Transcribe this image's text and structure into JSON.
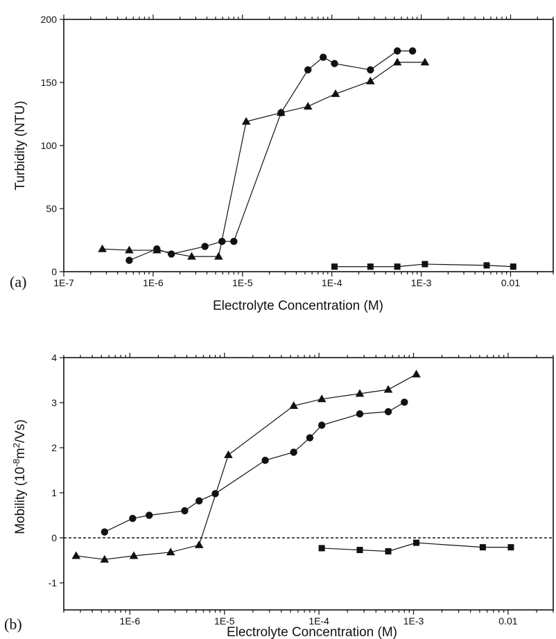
{
  "chart_data": [
    {
      "type": "line",
      "panel_label": "(a)",
      "xlabel": "Electrolyte Concentration (M)",
      "ylabel": "Turbidity (NTU)",
      "x_scale": "log",
      "xlim": [
        1e-07,
        0.03
      ],
      "ylim": [
        0,
        200
      ],
      "x_ticks": [
        1e-07,
        1e-06,
        1e-05,
        0.0001,
        0.001,
        0.01
      ],
      "x_tick_labels": [
        "1E-7",
        "1E-6",
        "1E-5",
        "1E-4",
        "1E-3",
        "0.01"
      ],
      "y_ticks": [
        0,
        50,
        100,
        150,
        200
      ],
      "y_tick_labels": [
        "0",
        "50",
        "100",
        "150",
        "200"
      ],
      "grid": false,
      "series": [
        {
          "marker": "triangle",
          "x": [
            2.7e-07,
            5.4e-07,
            1.1e-06,
            2.7e-06,
            5.4e-06,
            1.1e-05,
            2.7e-05,
            5.4e-05,
            0.00011,
            0.00027,
            0.00054,
            0.0011
          ],
          "y": [
            18,
            17,
            17,
            12,
            12,
            119,
            126,
            131,
            141,
            151,
            166,
            166
          ]
        },
        {
          "marker": "circle",
          "x": [
            5.4e-07,
            1.1e-06,
            1.6e-06,
            3.8e-06,
            5.9e-06,
            8e-06,
            2.7e-05,
            5.4e-05,
            8e-05,
            0.000107,
            0.00027,
            0.00054,
            0.0008
          ],
          "y": [
            9,
            18,
            14,
            20,
            24,
            24,
            126,
            160,
            170,
            165,
            160,
            175,
            175
          ]
        },
        {
          "marker": "square",
          "x": [
            0.000107,
            0.00027,
            0.00054,
            0.0011,
            0.0054,
            0.0107
          ],
          "y": [
            4,
            4,
            4,
            6,
            5,
            4
          ]
        }
      ]
    },
    {
      "type": "line",
      "panel_label": "(b)",
      "xlabel": "Electrolyte Concentration (M)",
      "ylabel_parts": [
        "Mobility (10",
        "-8",
        "m",
        "2",
        "/Vs)"
      ],
      "x_scale": "log",
      "xlim": [
        2e-07,
        0.03
      ],
      "ylim": [
        -1.6,
        4
      ],
      "x_ticks": [
        1e-06,
        1e-05,
        0.0001,
        0.001,
        0.01
      ],
      "x_tick_labels": [
        "1E-6",
        "1E-5",
        "1E-4",
        "1E-3",
        "0.01"
      ],
      "y_ticks": [
        -1,
        0,
        1,
        2,
        3,
        4
      ],
      "y_tick_labels": [
        "-1",
        "0",
        "1",
        "2",
        "3",
        "4"
      ],
      "grid": false,
      "zero_line": "dashed",
      "series": [
        {
          "marker": "triangle",
          "x": [
            2.7e-07,
            5.4e-07,
            1.1e-06,
            2.7e-06,
            5.4e-06,
            1.1e-05,
            5.4e-05,
            0.000107,
            0.00027,
            0.00054,
            0.00107
          ],
          "y": [
            -0.4,
            -0.48,
            -0.4,
            -0.32,
            -0.16,
            1.84,
            2.93,
            3.08,
            3.2,
            3.29,
            3.63
          ]
        },
        {
          "marker": "circle",
          "x": [
            5.4e-07,
            1.07e-06,
            1.6e-06,
            3.8e-06,
            5.4e-06,
            8e-06,
            2.7e-05,
            5.4e-05,
            8e-05,
            0.000107,
            0.00027,
            0.00054,
            0.0008
          ],
          "y": [
            0.13,
            0.43,
            0.5,
            0.6,
            0.82,
            0.98,
            1.72,
            1.9,
            2.22,
            2.5,
            2.75,
            2.8,
            3.01
          ]
        },
        {
          "marker": "square",
          "x": [
            0.000107,
            0.00027,
            0.00054,
            0.00107,
            0.0054,
            0.0107
          ],
          "y": [
            -0.23,
            -0.27,
            -0.3,
            -0.11,
            -0.21,
            -0.21
          ]
        }
      ]
    }
  ]
}
